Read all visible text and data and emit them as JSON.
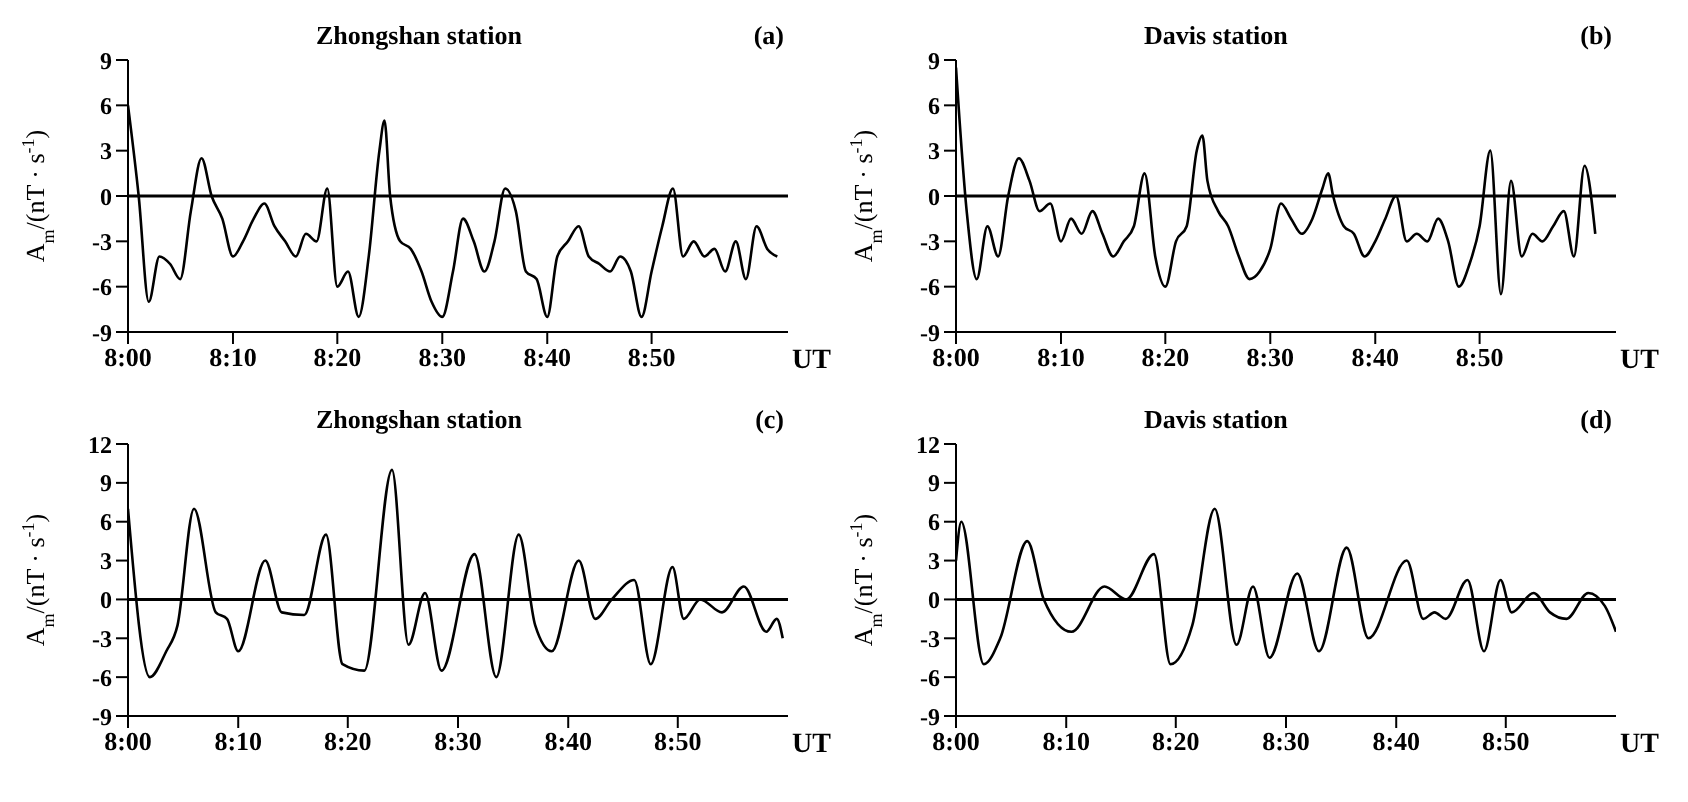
{
  "chart_data": [
    {
      "type": "line",
      "title": "Zhongshan station",
      "annotations": [
        "(a)"
      ],
      "ylabel": "A$_{m}$/(nT · s$^{-1}$)",
      "xlabel": "UT",
      "x": [
        8,
        8.017,
        8.033,
        8.05,
        8.067,
        8.083,
        8.1,
        8.117,
        8.133,
        8.15,
        8.167,
        8.183,
        8.2,
        8.217,
        8.233,
        8.25,
        8.267,
        8.283,
        8.3,
        8.317,
        8.333,
        8.35,
        8.367,
        8.383,
        8.4,
        8.408,
        8.417,
        8.433,
        8.45,
        8.467,
        8.483,
        8.5,
        8.517,
        8.533,
        8.55,
        8.567,
        8.583,
        8.6,
        8.617,
        8.633,
        8.65,
        8.667,
        8.683,
        8.7,
        8.717,
        8.733,
        8.75,
        8.767,
        8.783,
        8.8,
        8.817,
        8.833,
        8.85,
        8.867,
        8.883,
        8.9,
        8.917,
        8.933,
        8.95,
        8.967,
        8.983,
        9,
        9.017,
        9.033
      ],
      "series": [
        {
          "color": "#000000",
          "values": [
            6,
            0,
            -7,
            -4,
            -4.5,
            -5.5,
            -1,
            2.5,
            0,
            -1.5,
            -4,
            -3,
            -1.5,
            -0.5,
            -2,
            -3,
            -4,
            -2.5,
            -3,
            0.5,
            -6,
            -5,
            -8,
            -4,
            3,
            5,
            0,
            -3,
            -3.5,
            -5,
            -7,
            -8,
            -5,
            -1.5,
            -3,
            -5,
            -3,
            0.5,
            -1,
            -5,
            -5.5,
            -8,
            -4,
            -3,
            -2,
            -4,
            -4.5,
            -5,
            -4,
            -5,
            -8,
            -5,
            -2,
            0.5,
            -4,
            -3,
            -4,
            -3.5,
            -5,
            -3,
            -5.5,
            -2,
            -3.5,
            -4
          ]
        }
      ],
      "xlim": [
        8,
        9.05
      ],
      "ylim": [
        -9,
        9
      ],
      "yticks": [
        -9,
        -6,
        -3,
        0,
        3,
        6,
        9
      ],
      "xticks": [
        {
          "value": 8,
          "label": "8:00"
        },
        {
          "value": 8.167,
          "label": "8:10"
        },
        {
          "value": 8.333,
          "label": "8:20"
        },
        {
          "value": 8.5,
          "label": "8:30"
        },
        {
          "value": 8.667,
          "label": "8:40"
        },
        {
          "value": 8.833,
          "label": "8:50"
        }
      ],
      "ref_lines": [
        {
          "axis": "y",
          "value": 0,
          "color": "#000000"
        }
      ]
    },
    {
      "type": "line",
      "title": "Davis station",
      "annotations": [
        "(b)"
      ],
      "ylabel": "A$_{m}$/(nT · s$^{-1}$)",
      "xlabel": "UT",
      "x": [
        8,
        8.017,
        8.033,
        8.05,
        8.067,
        8.083,
        8.1,
        8.117,
        8.133,
        8.15,
        8.167,
        8.183,
        8.2,
        8.217,
        8.233,
        8.25,
        8.267,
        8.283,
        8.3,
        8.317,
        8.333,
        8.35,
        8.367,
        8.383,
        8.392,
        8.4,
        8.417,
        8.433,
        8.45,
        8.467,
        8.483,
        8.5,
        8.517,
        8.533,
        8.55,
        8.567,
        8.583,
        8.592,
        8.6,
        8.617,
        8.633,
        8.65,
        8.667,
        8.683,
        8.7,
        8.717,
        8.733,
        8.75,
        8.767,
        8.783,
        8.8,
        8.817,
        8.833,
        8.85,
        8.867,
        8.883,
        8.9,
        8.917,
        8.933,
        8.95,
        8.967,
        8.983,
        9,
        9.017
      ],
      "series": [
        {
          "color": "#000000",
          "values": [
            8.5,
            -1,
            -5.5,
            -2,
            -4,
            0,
            2.5,
            1,
            -1,
            -0.5,
            -3,
            -1.5,
            -2.5,
            -1,
            -2.5,
            -4,
            -3,
            -2,
            1.5,
            -4,
            -6,
            -3,
            -2,
            3,
            4,
            1,
            -1,
            -2,
            -4,
            -5.5,
            -5,
            -3.5,
            -0.5,
            -1.5,
            -2.5,
            -1.5,
            0.5,
            1.5,
            0,
            -2,
            -2.5,
            -4,
            -3,
            -1.5,
            0,
            -3,
            -2.5,
            -3,
            -1.5,
            -3,
            -6,
            -4.5,
            -2,
            3,
            -6.5,
            1,
            -4,
            -2.5,
            -3,
            -2,
            -1,
            -4,
            2,
            -2.5
          ]
        }
      ],
      "xlim": [
        8,
        9.05
      ],
      "ylim": [
        -9,
        9
      ],
      "yticks": [
        -9,
        -6,
        -3,
        0,
        3,
        6,
        9
      ],
      "xticks": [
        {
          "value": 8,
          "label": "8:00"
        },
        {
          "value": 8.167,
          "label": "8:10"
        },
        {
          "value": 8.333,
          "label": "8:20"
        },
        {
          "value": 8.5,
          "label": "8:30"
        },
        {
          "value": 8.667,
          "label": "8:40"
        },
        {
          "value": 8.833,
          "label": "8:50"
        }
      ],
      "ref_lines": [
        {
          "axis": "y",
          "value": 0,
          "color": "#000000"
        }
      ]
    },
    {
      "type": "line",
      "title": "Zhongshan station",
      "annotations": [
        "(c)"
      ],
      "ylabel": "A$_{m}$/(nT · s$^{-1}$)",
      "xlabel": "UT",
      "x": [
        8,
        8.033,
        8.058,
        8.075,
        8.1,
        8.133,
        8.15,
        8.167,
        8.208,
        8.233,
        8.267,
        8.3,
        8.325,
        8.358,
        8.4,
        8.425,
        8.45,
        8.475,
        8.525,
        8.558,
        8.592,
        8.617,
        8.642,
        8.683,
        8.708,
        8.733,
        8.767,
        8.792,
        8.825,
        8.842,
        8.867,
        8.9,
        8.933,
        8.967,
        8.983,
        8.992
      ],
      "series": [
        {
          "color": "#000000",
          "values": [
            7,
            -6,
            -4,
            -2,
            7,
            -1,
            -1.5,
            -4,
            3,
            -1,
            -1.2,
            5,
            -5,
            -5.5,
            10,
            -3.5,
            0.5,
            -5.5,
            3.5,
            -6,
            5,
            -2,
            -4,
            3,
            -1.5,
            0,
            1.5,
            -5,
            2.5,
            -1.5,
            0,
            -1,
            1,
            -2.5,
            -1.5,
            -3
          ]
        }
      ],
      "xlim": [
        8,
        9
      ],
      "ylim": [
        -9,
        12
      ],
      "yticks": [
        -9,
        -6,
        -3,
        0,
        3,
        6,
        9,
        12
      ],
      "xticks": [
        {
          "value": 8,
          "label": "8:00"
        },
        {
          "value": 8.167,
          "label": "8:10"
        },
        {
          "value": 8.333,
          "label": "8:20"
        },
        {
          "value": 8.5,
          "label": "8:30"
        },
        {
          "value": 8.667,
          "label": "8:40"
        },
        {
          "value": 8.833,
          "label": "8:50"
        }
      ],
      "ref_lines": [
        {
          "axis": "y",
          "value": 0,
          "color": "#000000"
        }
      ]
    },
    {
      "type": "line",
      "title": "Davis station",
      "annotations": [
        "(d)"
      ],
      "ylabel": "A$_{m}$/(nT · s$^{-1}$)",
      "xlabel": "UT",
      "x": [
        8,
        8.008,
        8.042,
        8.067,
        8.108,
        8.133,
        8.175,
        8.225,
        8.258,
        8.3,
        8.325,
        8.358,
        8.392,
        8.425,
        8.45,
        8.475,
        8.517,
        8.55,
        8.592,
        8.625,
        8.683,
        8.708,
        8.725,
        8.742,
        8.775,
        8.8,
        8.825,
        8.842,
        8.875,
        8.9,
        8.925,
        8.958,
        8.983,
        9
      ],
      "series": [
        {
          "color": "#000000",
          "values": [
            3,
            6,
            -5,
            -3,
            4.5,
            0,
            -2.5,
            1,
            0,
            3.5,
            -5,
            -2,
            7,
            -3.5,
            1,
            -4.5,
            2,
            -4,
            4,
            -3,
            3,
            -1.5,
            -1,
            -1.5,
            1.5,
            -4,
            1.5,
            -1,
            0.5,
            -1,
            -1.5,
            0.5,
            -0.5,
            -2.5
          ]
        }
      ],
      "xlim": [
        8,
        9
      ],
      "ylim": [
        -9,
        12
      ],
      "yticks": [
        -9,
        -6,
        -3,
        0,
        3,
        6,
        9,
        12
      ],
      "xticks": [
        {
          "value": 8,
          "label": "8:00"
        },
        {
          "value": 8.167,
          "label": "8:10"
        },
        {
          "value": 8.333,
          "label": "8:20"
        },
        {
          "value": 8.5,
          "label": "8:30"
        },
        {
          "value": 8.667,
          "label": "8:40"
        },
        {
          "value": 8.833,
          "label": "8:50"
        }
      ],
      "ref_lines": [
        {
          "axis": "y",
          "value": 0,
          "color": "#000000"
        }
      ]
    }
  ]
}
